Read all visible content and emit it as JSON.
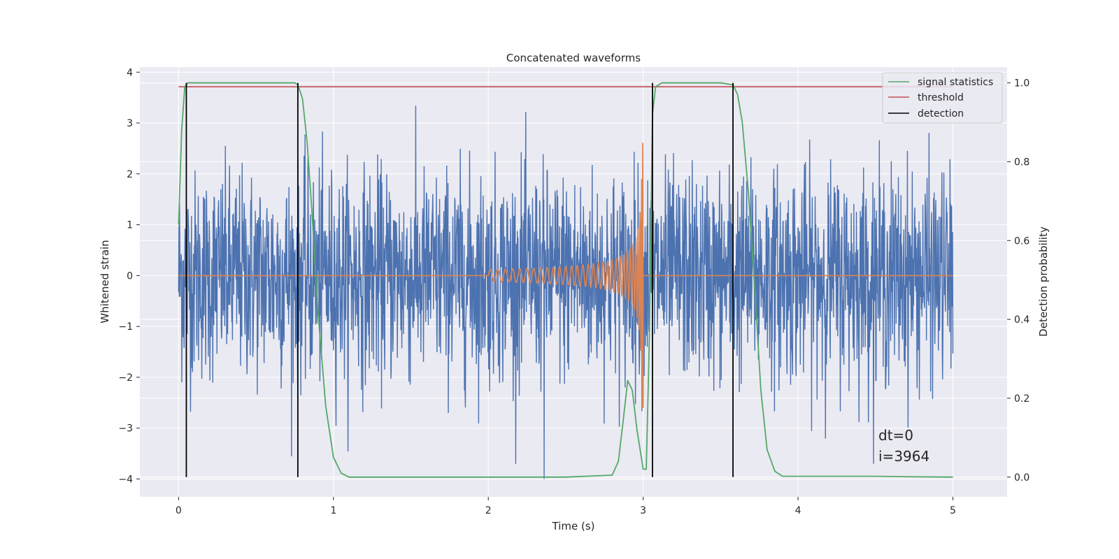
{
  "chart_data": {
    "type": "line",
    "title": "Concatenated waveforms",
    "xlabel": "Time (s)",
    "ylabel": "Whitened strain",
    "y2label": "Detection probability",
    "xlim": [
      -0.25,
      5.35
    ],
    "ylim": [
      -4.35,
      4.1
    ],
    "y2lim": [
      -0.05,
      1.04
    ],
    "xticks": [
      0,
      1,
      2,
      3,
      4,
      5
    ],
    "yticks": [
      -4,
      -3,
      -2,
      -1,
      0,
      1,
      2,
      3,
      4
    ],
    "y2ticks": [
      0.0,
      0.2,
      0.4,
      0.6,
      0.8,
      1.0
    ],
    "xtick_labels": [
      "0",
      "1",
      "2",
      "3",
      "4",
      "5"
    ],
    "ytick_labels": [
      "−4",
      "−3",
      "−2",
      "−1",
      "0",
      "1",
      "2",
      "3",
      "4"
    ],
    "y2tick_labels": [
      "0.0",
      "0.2",
      "0.4",
      "0.6",
      "0.8",
      "1.0"
    ],
    "grid": true,
    "legend_position": "top-right",
    "legend": [
      "signal statistics",
      "threshold",
      "detection"
    ],
    "series": [
      {
        "kind": "noise",
        "color": "#4c72b0",
        "x_range": [
          0,
          5
        ],
        "spread": 1.2,
        "max_abs": 3.7,
        "min_value": -4.0
      },
      {
        "kind": "chirp",
        "color": "#dd8452",
        "x_start": 2.0,
        "x_end": 3.0,
        "peak_amplitude": 2.6,
        "x_range": [
          0,
          5
        ]
      },
      {
        "name": "signal statistics",
        "axis": "right",
        "color": "#55a868",
        "x": [
          0.0,
          0.02,
          0.04,
          0.06,
          0.08,
          0.1,
          0.3,
          0.6,
          0.75,
          0.77,
          0.8,
          0.83,
          0.86,
          0.9,
          0.95,
          1.0,
          1.05,
          1.1,
          1.5,
          2.0,
          2.5,
          2.8,
          2.84,
          2.87,
          2.9,
          2.93,
          2.96,
          3.0,
          3.02,
          3.04,
          3.06,
          3.08,
          3.12,
          3.2,
          3.5,
          3.58,
          3.61,
          3.64,
          3.68,
          3.72,
          3.76,
          3.8,
          3.85,
          3.9,
          4.3,
          4.5,
          4.7,
          5.0
        ],
        "y": [
          0.64,
          0.88,
          0.99,
          1.0,
          1.0,
          1.0,
          1.0,
          1.0,
          1.0,
          0.995,
          0.96,
          0.85,
          0.68,
          0.42,
          0.18,
          0.05,
          0.01,
          0.0,
          0.0,
          0.0,
          0.0,
          0.005,
          0.04,
          0.14,
          0.245,
          0.22,
          0.12,
          0.02,
          0.02,
          0.35,
          0.92,
          0.99,
          1.0,
          1.0,
          1.0,
          0.995,
          0.97,
          0.9,
          0.72,
          0.48,
          0.22,
          0.07,
          0.015,
          0.002,
          0.002,
          0.002,
          0.001,
          0.0
        ]
      },
      {
        "name": "threshold",
        "axis": "right",
        "color": "#c44e52",
        "x": [
          0,
          5
        ],
        "y": [
          0.99,
          0.99
        ]
      },
      {
        "name": "detection",
        "axis": "right",
        "color": "#000000",
        "x": [
          0.05,
          0.77,
          3.06,
          3.58
        ],
        "y_range": [
          0.0,
          1.0
        ]
      }
    ],
    "annotations": [
      "dt=0",
      "i=3964"
    ]
  },
  "colors": {
    "figure_bg": "#ffffff",
    "axes_bg": "#eaeaf2",
    "grid": "#ffffff"
  }
}
